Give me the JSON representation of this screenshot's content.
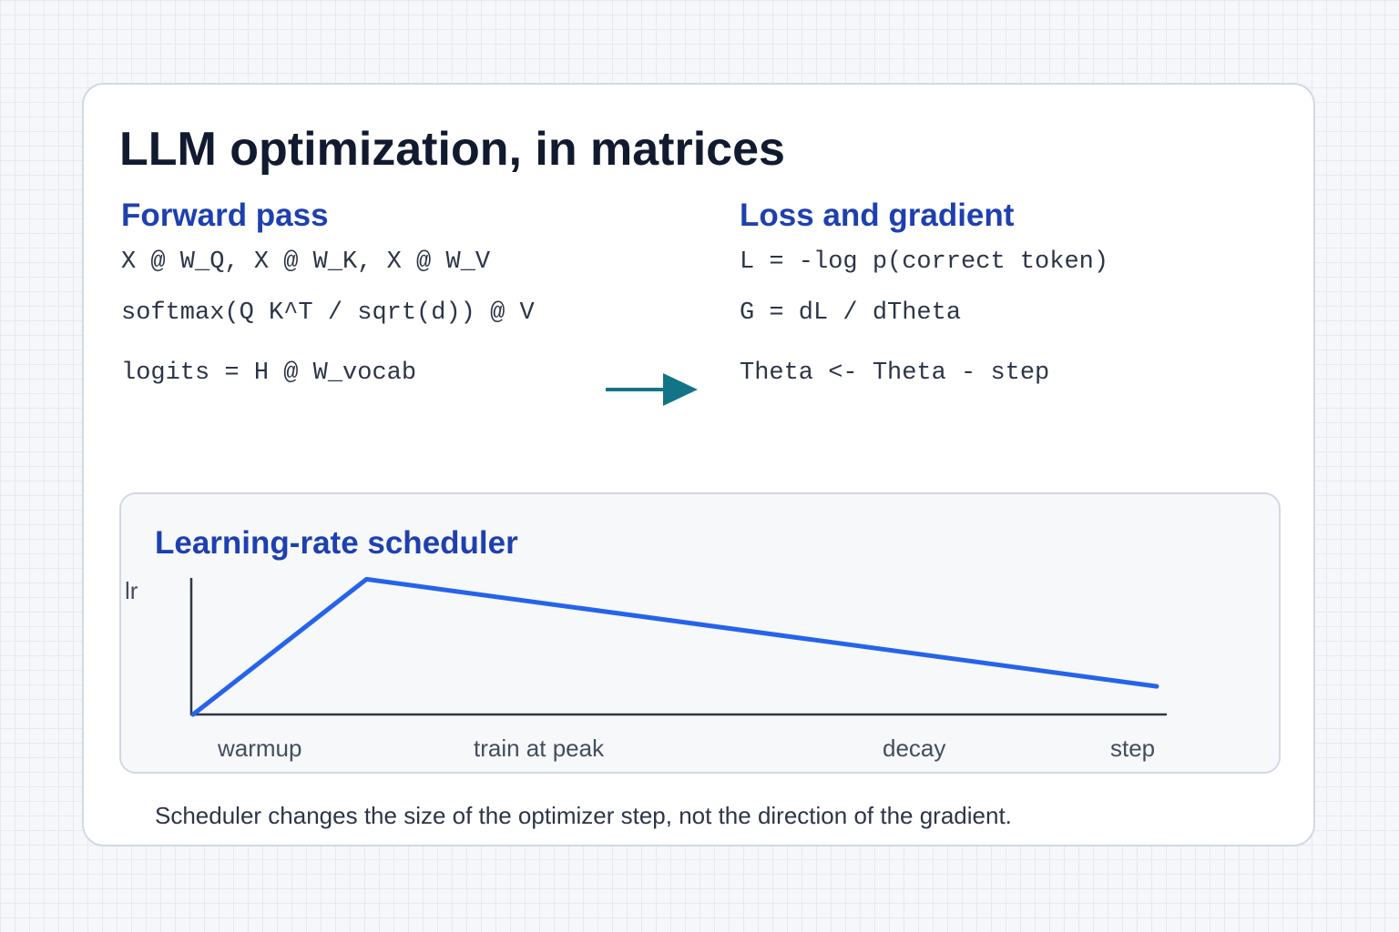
{
  "title": "LLM optimization, in matrices",
  "forward": {
    "heading": "Forward pass",
    "lines": [
      "X @ W_Q, X @ W_K, X @ W_V",
      "softmax(Q K^T / sqrt(d)) @ V",
      "logits = H @ W_vocab"
    ]
  },
  "loss": {
    "heading": "Loss and gradient",
    "lines": [
      "L = -log p(correct token)",
      "G = dL / dTheta",
      "Theta <- Theta - step"
    ]
  },
  "arrow_icon": "right-arrow-icon",
  "scheduler": {
    "heading": "Learning-rate scheduler",
    "y_axis_label": "lr",
    "phase_labels": [
      "warmup",
      "train at peak",
      "decay"
    ],
    "x_axis_label": "step"
  },
  "chart_data": {
    "type": "line",
    "title": "Learning-rate scheduler",
    "ylabel": "lr",
    "xlabel": "step",
    "xlim": [
      0,
      1
    ],
    "ylim": [
      0,
      1
    ],
    "series": [
      {
        "x": [
          0,
          0.18,
          1.0
        ],
        "y": [
          0.0,
          0.77,
          0.16
        ]
      }
    ],
    "annotations": [
      "warmup",
      "train at peak",
      "decay"
    ],
    "line_color": "#2563eb",
    "grid": false
  },
  "caption": "Scheduler changes the size of the optimizer step, not the direction of the gradient.",
  "colors": {
    "accent": "#1e40af",
    "arrow": "#137488",
    "line": "#2563eb",
    "text": "#2c3547"
  }
}
